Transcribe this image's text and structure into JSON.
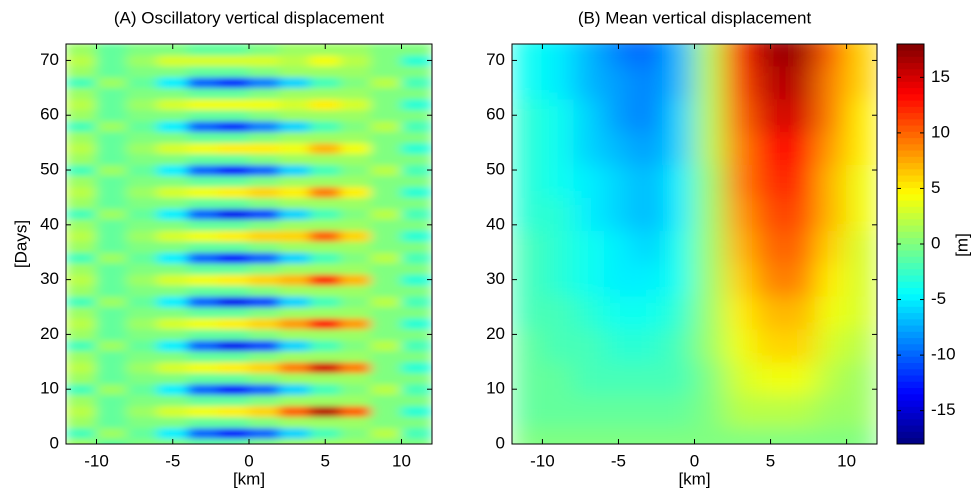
{
  "chart_data": [
    {
      "type": "heatmap",
      "title": "(A) Oscillatory vertical displacement",
      "xlabel": "[km]",
      "ylabel": "[Days]",
      "colormap": "jet",
      "xlim": [
        -12,
        12
      ],
      "ylim": [
        0,
        73
      ],
      "xticks": [
        -10,
        -5,
        0,
        5,
        10
      ],
      "yticks": [
        0,
        10,
        20,
        30,
        40,
        50,
        60,
        70
      ],
      "x": [
        -11,
        -9,
        -7,
        -5,
        -3,
        -1,
        1,
        3,
        5,
        7,
        9,
        11
      ],
      "y": [
        0,
        2,
        4,
        6,
        8,
        10,
        12,
        14,
        16,
        18,
        20,
        22,
        24,
        26,
        28,
        30,
        32,
        34,
        36,
        38,
        40,
        42,
        44,
        46,
        48,
        50,
        52,
        54,
        56,
        58,
        60,
        62,
        64,
        66,
        68,
        70,
        72
      ],
      "z": [
        [
          1,
          -1,
          0,
          0,
          -1,
          -1,
          0,
          1,
          1,
          1,
          0,
          0
        ],
        [
          -2,
          1,
          -1,
          -5,
          -10,
          -13,
          -10,
          -6,
          -2,
          0,
          2,
          -2
        ],
        [
          1,
          -1,
          0,
          0,
          -1,
          -1,
          0,
          1,
          1,
          1,
          0,
          0
        ],
        [
          2,
          -1,
          1,
          3,
          4,
          5,
          6,
          10,
          16,
          10,
          0,
          -3
        ],
        [
          1,
          -1,
          0,
          0,
          -1,
          -1,
          0,
          1,
          1,
          1,
          0,
          0
        ],
        [
          -2,
          1,
          -1,
          -5,
          -10,
          -13,
          -10,
          -6,
          -2,
          0,
          2,
          -2
        ],
        [
          1,
          -1,
          0,
          0,
          -1,
          -1,
          0,
          1,
          1,
          1,
          0,
          0
        ],
        [
          2,
          -1,
          1,
          3,
          4,
          5,
          6,
          9,
          15,
          9,
          0,
          -3
        ],
        [
          1,
          -1,
          0,
          0,
          -1,
          -1,
          0,
          1,
          1,
          1,
          0,
          0
        ],
        [
          -2,
          1,
          -1,
          -5,
          -10,
          -14,
          -11,
          -6,
          -2,
          0,
          2,
          -2
        ],
        [
          1,
          -1,
          0,
          0,
          -1,
          -1,
          0,
          1,
          1,
          1,
          0,
          0
        ],
        [
          2,
          -1,
          1,
          3,
          4,
          5,
          6,
          8,
          13,
          8,
          0,
          -3
        ],
        [
          1,
          -1,
          0,
          0,
          -1,
          -1,
          0,
          1,
          1,
          1,
          0,
          0
        ],
        [
          -2,
          1,
          -1,
          -5,
          -10,
          -14,
          -11,
          -6,
          -2,
          0,
          2,
          -2
        ],
        [
          1,
          -1,
          0,
          0,
          -1,
          -1,
          0,
          1,
          1,
          1,
          0,
          0
        ],
        [
          2,
          -1,
          1,
          3,
          4,
          5,
          6,
          7,
          12,
          7,
          0,
          -3
        ],
        [
          1,
          -1,
          0,
          0,
          -1,
          -1,
          0,
          1,
          1,
          1,
          0,
          0
        ],
        [
          -2,
          1,
          -1,
          -5,
          -10,
          -13,
          -10,
          -6,
          -2,
          0,
          2,
          -2
        ],
        [
          1,
          -1,
          0,
          0,
          -1,
          -1,
          0,
          1,
          1,
          1,
          0,
          0
        ],
        [
          2,
          -1,
          1,
          3,
          4,
          5,
          6,
          6,
          10,
          6,
          0,
          -3
        ],
        [
          1,
          -1,
          0,
          0,
          -1,
          -1,
          0,
          1,
          1,
          1,
          0,
          0
        ],
        [
          -2,
          1,
          -1,
          -5,
          -10,
          -14,
          -11,
          -6,
          -2,
          0,
          2,
          -2
        ],
        [
          1,
          -1,
          0,
          0,
          -1,
          -1,
          0,
          1,
          1,
          1,
          0,
          0
        ],
        [
          2,
          -1,
          1,
          3,
          4,
          5,
          6,
          5,
          9,
          5,
          0,
          -3
        ],
        [
          1,
          -1,
          0,
          0,
          -1,
          -1,
          0,
          1,
          1,
          1,
          0,
          0
        ],
        [
          -2,
          1,
          -1,
          -5,
          -10,
          -13,
          -10,
          -6,
          -2,
          0,
          2,
          -2
        ],
        [
          1,
          -1,
          0,
          0,
          -1,
          -1,
          0,
          1,
          1,
          1,
          0,
          0
        ],
        [
          2,
          -1,
          1,
          3,
          4,
          5,
          5,
          4,
          7,
          4,
          0,
          -3
        ],
        [
          1,
          -1,
          0,
          0,
          -1,
          -1,
          0,
          1,
          1,
          1,
          0,
          0
        ],
        [
          -2,
          1,
          -1,
          -5,
          -10,
          -12,
          -9,
          -6,
          -2,
          0,
          2,
          -2
        ],
        [
          1,
          -1,
          0,
          0,
          -1,
          -1,
          0,
          1,
          1,
          1,
          0,
          0
        ],
        [
          2,
          -1,
          1,
          3,
          4,
          4,
          4,
          3,
          5,
          3,
          0,
          -3
        ],
        [
          1,
          -1,
          0,
          0,
          -1,
          -1,
          0,
          1,
          1,
          1,
          0,
          0
        ],
        [
          -2,
          1,
          -1,
          -5,
          -10,
          -12,
          -9,
          -6,
          -2,
          0,
          2,
          -2
        ],
        [
          1,
          -1,
          0,
          0,
          -1,
          -1,
          0,
          1,
          1,
          1,
          0,
          0
        ],
        [
          2,
          -1,
          1,
          3,
          3,
          3,
          3,
          2,
          4,
          2,
          0,
          -3
        ],
        [
          1,
          -1,
          0,
          0,
          -1,
          -1,
          0,
          1,
          1,
          1,
          0,
          0
        ]
      ]
    },
    {
      "type": "heatmap",
      "title": "(B) Mean vertical displacement",
      "xlabel": "[km]",
      "colormap": "jet",
      "xlim": [
        -12,
        12
      ],
      "ylim": [
        0,
        73
      ],
      "xticks": [
        -10,
        -5,
        0,
        5,
        10
      ],
      "yticks": [
        0,
        10,
        20,
        30,
        40,
        50,
        60,
        70
      ],
      "x": [
        -11,
        -9,
        -7,
        -5,
        -3,
        -1,
        1,
        3,
        5,
        7,
        9,
        11
      ],
      "y": [
        0,
        6,
        12,
        18,
        24,
        30,
        36,
        42,
        48,
        54,
        60,
        66,
        72
      ],
      "z": [
        [
          0,
          0,
          0,
          0,
          0,
          0,
          0,
          0,
          0,
          0,
          0,
          0
        ],
        [
          -1,
          -1,
          -1,
          -1,
          -1,
          -1,
          0,
          2,
          2,
          2,
          1,
          1
        ],
        [
          -1,
          -1,
          -2,
          -2,
          -2,
          -2,
          0,
          3,
          4,
          4,
          2,
          1
        ],
        [
          -1,
          -2,
          -2,
          -3,
          -3,
          -2,
          1,
          4,
          6,
          6,
          3,
          2
        ],
        [
          -2,
          -2,
          -3,
          -4,
          -4,
          -3,
          1,
          5,
          7,
          7,
          4,
          3
        ],
        [
          -2,
          -3,
          -4,
          -5,
          -5,
          -4,
          1,
          6,
          9,
          9,
          5,
          3
        ],
        [
          -2,
          -3,
          -4,
          -5,
          -6,
          -4,
          1,
          7,
          10,
          10,
          6,
          3
        ],
        [
          -3,
          -3,
          -5,
          -6,
          -7,
          -5,
          1,
          8,
          11,
          11,
          7,
          4
        ],
        [
          -3,
          -4,
          -5,
          -6,
          -7,
          -5,
          1,
          9,
          12,
          12,
          7,
          4
        ],
        [
          -3,
          -4,
          -6,
          -7,
          -8,
          -6,
          2,
          9,
          13,
          13,
          8,
          5
        ],
        [
          -3,
          -4,
          -6,
          -8,
          -9,
          -6,
          2,
          10,
          15,
          15,
          9,
          5
        ],
        [
          -4,
          -5,
          -7,
          -8,
          -9,
          -7,
          2,
          11,
          16,
          16,
          9,
          6
        ],
        [
          -4,
          -5,
          -7,
          -9,
          -10,
          -7,
          2,
          12,
          17,
          17,
          10,
          6
        ]
      ],
      "colorbar": {
        "label": "[m]",
        "clim": [
          -18,
          18
        ],
        "ticks": [
          -15,
          -10,
          -5,
          0,
          5,
          10,
          15
        ]
      }
    }
  ]
}
